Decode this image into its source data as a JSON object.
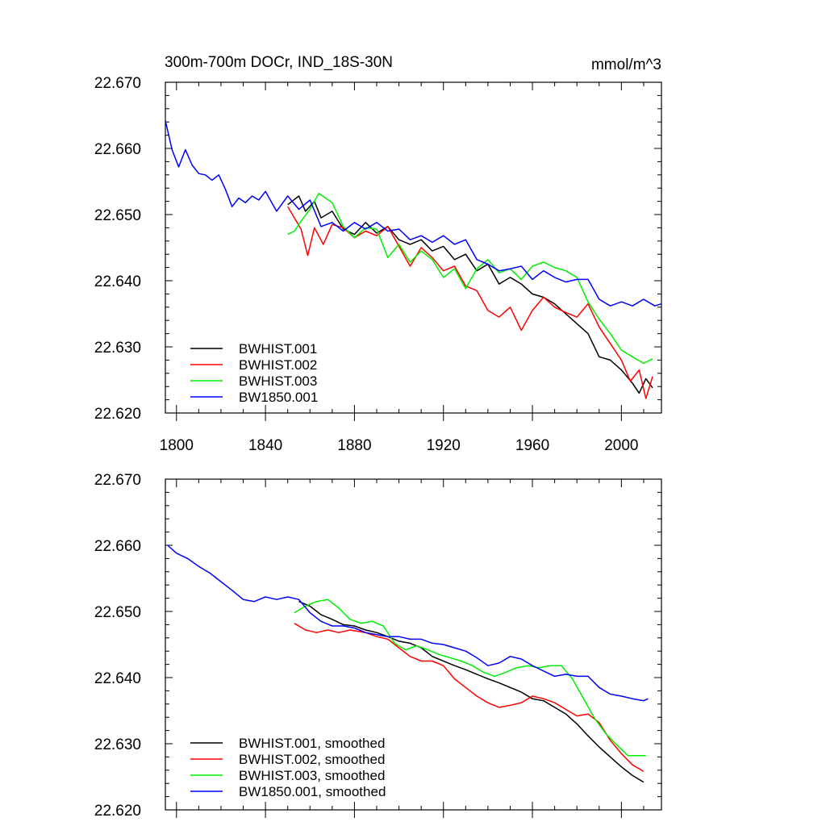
{
  "chart_data": [
    {
      "type": "line",
      "title": "300m-700m DOCr, IND_18S-30N",
      "units": "mmol/m^3",
      "xlim": [
        1795,
        2018
      ],
      "ylim": [
        22.62,
        22.67
      ],
      "x_ticks": [
        1800,
        1840,
        1880,
        1920,
        1960,
        2000
      ],
      "y_ticks": [
        "22.620",
        "22.630",
        "22.640",
        "22.650",
        "22.660",
        "22.670"
      ],
      "show_x_labels": true,
      "legend_position": "bottom-left",
      "series": [
        {
          "name": "BWHIST.001",
          "color": "#000000",
          "x": [
            1850,
            1855,
            1858,
            1862,
            1865,
            1870,
            1875,
            1880,
            1885,
            1890,
            1895,
            1900,
            1905,
            1910,
            1915,
            1920,
            1925,
            1930,
            1935,
            1940,
            1945,
            1950,
            1955,
            1960,
            1965,
            1970,
            1975,
            1980,
            1985,
            1990,
            1995,
            2000,
            2005,
            2008,
            2011,
            2014
          ],
          "y": [
            22.6515,
            22.6528,
            22.6505,
            22.652,
            22.6495,
            22.6505,
            22.6478,
            22.647,
            22.6488,
            22.6472,
            22.6482,
            22.6462,
            22.6455,
            22.6462,
            22.6445,
            22.6452,
            22.6432,
            22.644,
            22.6415,
            22.6425,
            22.6395,
            22.6405,
            22.6395,
            22.638,
            22.6375,
            22.6365,
            22.635,
            22.6335,
            22.632,
            22.6285,
            22.628,
            22.6265,
            22.6245,
            22.623,
            22.6252,
            22.6238
          ]
        },
        {
          "name": "BWHIST.002",
          "color": "#ff0000",
          "x": [
            1850,
            1853,
            1856,
            1859,
            1862,
            1866,
            1870,
            1875,
            1880,
            1885,
            1890,
            1895,
            1900,
            1905,
            1910,
            1915,
            1920,
            1925,
            1930,
            1935,
            1940,
            1945,
            1950,
            1955,
            1960,
            1965,
            1970,
            1975,
            1980,
            1985,
            1990,
            1995,
            2000,
            2004,
            2008,
            2011,
            2014
          ],
          "y": [
            22.6512,
            22.6495,
            22.6478,
            22.6438,
            22.648,
            22.6455,
            22.6485,
            22.648,
            22.6465,
            22.6475,
            22.6468,
            22.6482,
            22.6452,
            22.6422,
            22.645,
            22.6435,
            22.6415,
            22.6422,
            22.6392,
            22.6385,
            22.6355,
            22.6345,
            22.636,
            22.6325,
            22.6355,
            22.6375,
            22.636,
            22.6352,
            22.6345,
            22.6365,
            22.633,
            22.6305,
            22.628,
            22.6248,
            22.6265,
            22.6222,
            22.6255
          ]
        },
        {
          "name": "BWHIST.003",
          "color": "#00ee00",
          "x": [
            1850,
            1853,
            1856,
            1860,
            1864,
            1867,
            1870,
            1875,
            1880,
            1885,
            1890,
            1895,
            1900,
            1905,
            1910,
            1915,
            1920,
            1925,
            1930,
            1935,
            1940,
            1945,
            1950,
            1955,
            1960,
            1965,
            1970,
            1975,
            1980,
            1985,
            1990,
            1995,
            2000,
            2005,
            2010,
            2014
          ],
          "y": [
            22.647,
            22.6475,
            22.649,
            22.6508,
            22.6532,
            22.6525,
            22.6518,
            22.6482,
            22.6465,
            22.648,
            22.6478,
            22.6435,
            22.6455,
            22.6428,
            22.6445,
            22.6432,
            22.6405,
            22.6418,
            22.6388,
            22.6418,
            22.6432,
            22.6412,
            22.6418,
            22.6402,
            22.6422,
            22.6428,
            22.642,
            22.6415,
            22.6405,
            22.6368,
            22.6342,
            22.632,
            22.6295,
            22.6285,
            22.6275,
            22.6282
          ]
        },
        {
          "name": "BW1850.001",
          "color": "#0000ff",
          "x": [
            1795,
            1798,
            1801,
            1804,
            1807,
            1810,
            1813,
            1816,
            1819,
            1822,
            1825,
            1828,
            1831,
            1834,
            1837,
            1840,
            1845,
            1850,
            1855,
            1860,
            1865,
            1870,
            1875,
            1880,
            1885,
            1890,
            1895,
            1900,
            1905,
            1910,
            1915,
            1920,
            1925,
            1930,
            1935,
            1940,
            1945,
            1950,
            1955,
            1960,
            1965,
            1970,
            1975,
            1980,
            1985,
            1990,
            1995,
            2000,
            2005,
            2010,
            2015,
            2018
          ],
          "y": [
            22.6642,
            22.6598,
            22.6572,
            22.6598,
            22.6575,
            22.6562,
            22.656,
            22.6552,
            22.656,
            22.6538,
            22.6512,
            22.6525,
            22.6518,
            22.6528,
            22.6522,
            22.6535,
            22.6505,
            22.6528,
            22.6508,
            22.6522,
            22.6482,
            22.6488,
            22.6475,
            22.6488,
            22.6478,
            22.6488,
            22.6475,
            22.6478,
            22.6462,
            22.6468,
            22.6458,
            22.6468,
            22.6455,
            22.6462,
            22.6432,
            22.6425,
            22.6415,
            22.6418,
            22.6422,
            22.6402,
            22.6415,
            22.6405,
            22.6398,
            22.6402,
            22.6402,
            22.6372,
            22.6362,
            22.6368,
            22.6362,
            22.6372,
            22.6362,
            22.6365
          ]
        }
      ]
    },
    {
      "type": "line",
      "title": "",
      "xlim": [
        1795,
        2018
      ],
      "ylim": [
        22.62,
        22.67
      ],
      "x_ticks": [
        1800,
        1840,
        1880,
        1920,
        1960,
        2000
      ],
      "y_ticks": [
        "22.620",
        "22.630",
        "22.640",
        "22.650",
        "22.660",
        "22.670"
      ],
      "show_x_labels": false,
      "legend_position": "bottom-left",
      "series": [
        {
          "name": "BWHIST.001, smoothed",
          "color": "#000000",
          "x": [
            1855,
            1860,
            1865,
            1870,
            1875,
            1880,
            1885,
            1890,
            1895,
            1900,
            1905,
            1910,
            1915,
            1920,
            1925,
            1930,
            1935,
            1940,
            1945,
            1950,
            1955,
            1960,
            1965,
            1970,
            1975,
            1980,
            1985,
            1990,
            1995,
            2000,
            2005,
            2010
          ],
          "y": [
            22.6515,
            22.6508,
            22.6495,
            22.6488,
            22.648,
            22.6478,
            22.6472,
            22.6468,
            22.6462,
            22.6455,
            22.6452,
            22.6445,
            22.6432,
            22.6425,
            22.6418,
            22.6412,
            22.6405,
            22.6398,
            22.6392,
            22.6385,
            22.6378,
            22.6368,
            22.6365,
            22.6355,
            22.6345,
            22.633,
            22.6312,
            22.6295,
            22.628,
            22.6265,
            22.6252,
            22.6242
          ]
        },
        {
          "name": "BWHIST.002, smoothed",
          "color": "#ff0000",
          "x": [
            1853,
            1858,
            1863,
            1868,
            1873,
            1878,
            1885,
            1890,
            1895,
            1900,
            1905,
            1910,
            1915,
            1920,
            1925,
            1930,
            1935,
            1940,
            1945,
            1950,
            1955,
            1960,
            1965,
            1970,
            1975,
            1980,
            1985,
            1990,
            1995,
            2000,
            2005,
            2010
          ],
          "y": [
            22.6482,
            22.6472,
            22.6468,
            22.6472,
            22.6468,
            22.6472,
            22.6468,
            22.6462,
            22.6458,
            22.6445,
            22.6432,
            22.6425,
            22.6425,
            22.6418,
            22.6398,
            22.6385,
            22.6372,
            22.6362,
            22.6355,
            22.6358,
            22.6362,
            22.6372,
            22.6368,
            22.6362,
            22.6352,
            22.6342,
            22.6345,
            22.6332,
            22.6305,
            22.6285,
            22.6268,
            22.6258
          ]
        },
        {
          "name": "BWHIST.003, smoothed",
          "color": "#00ee00",
          "x": [
            1853,
            1858,
            1863,
            1868,
            1873,
            1878,
            1883,
            1888,
            1893,
            1898,
            1903,
            1908,
            1913,
            1918,
            1923,
            1928,
            1933,
            1938,
            1943,
            1948,
            1953,
            1958,
            1963,
            1968,
            1973,
            1978,
            1983,
            1988,
            1993,
            1998,
            2003,
            2008,
            2011
          ],
          "y": [
            22.6498,
            22.6508,
            22.6515,
            22.6518,
            22.6505,
            22.6488,
            22.6482,
            22.6485,
            22.6478,
            22.6452,
            22.6442,
            22.6448,
            22.6442,
            22.6435,
            22.643,
            22.6425,
            22.6418,
            22.6408,
            22.6402,
            22.6408,
            22.6415,
            22.6418,
            22.6415,
            22.6418,
            22.6418,
            22.6398,
            22.6368,
            22.6338,
            22.6315,
            22.6298,
            22.6282,
            22.6282,
            22.6282
          ]
        },
        {
          "name": "BW1850.001, smoothed",
          "color": "#0000ff",
          "x": [
            1796,
            1800,
            1805,
            1810,
            1815,
            1820,
            1825,
            1830,
            1835,
            1840,
            1845,
            1850,
            1855,
            1860,
            1865,
            1870,
            1875,
            1880,
            1885,
            1890,
            1895,
            1900,
            1905,
            1910,
            1915,
            1920,
            1925,
            1930,
            1935,
            1940,
            1945,
            1950,
            1955,
            1960,
            1965,
            1970,
            1975,
            1980,
            1985,
            1990,
            1995,
            2000,
            2005,
            2010,
            2012
          ],
          "y": [
            22.66,
            22.6588,
            22.658,
            22.6568,
            22.6558,
            22.6545,
            22.6532,
            22.6518,
            22.6515,
            22.6522,
            22.6518,
            22.6522,
            22.6518,
            22.6498,
            22.6485,
            22.6478,
            22.6478,
            22.6475,
            22.6468,
            22.6465,
            22.6462,
            22.6462,
            22.6458,
            22.6458,
            22.6452,
            22.645,
            22.6445,
            22.644,
            22.643,
            22.6418,
            22.6422,
            22.6432,
            22.6428,
            22.6418,
            22.641,
            22.6402,
            22.6405,
            22.6402,
            22.6402,
            22.6385,
            22.6375,
            22.6372,
            22.6368,
            22.6365,
            22.6368
          ]
        }
      ]
    }
  ]
}
